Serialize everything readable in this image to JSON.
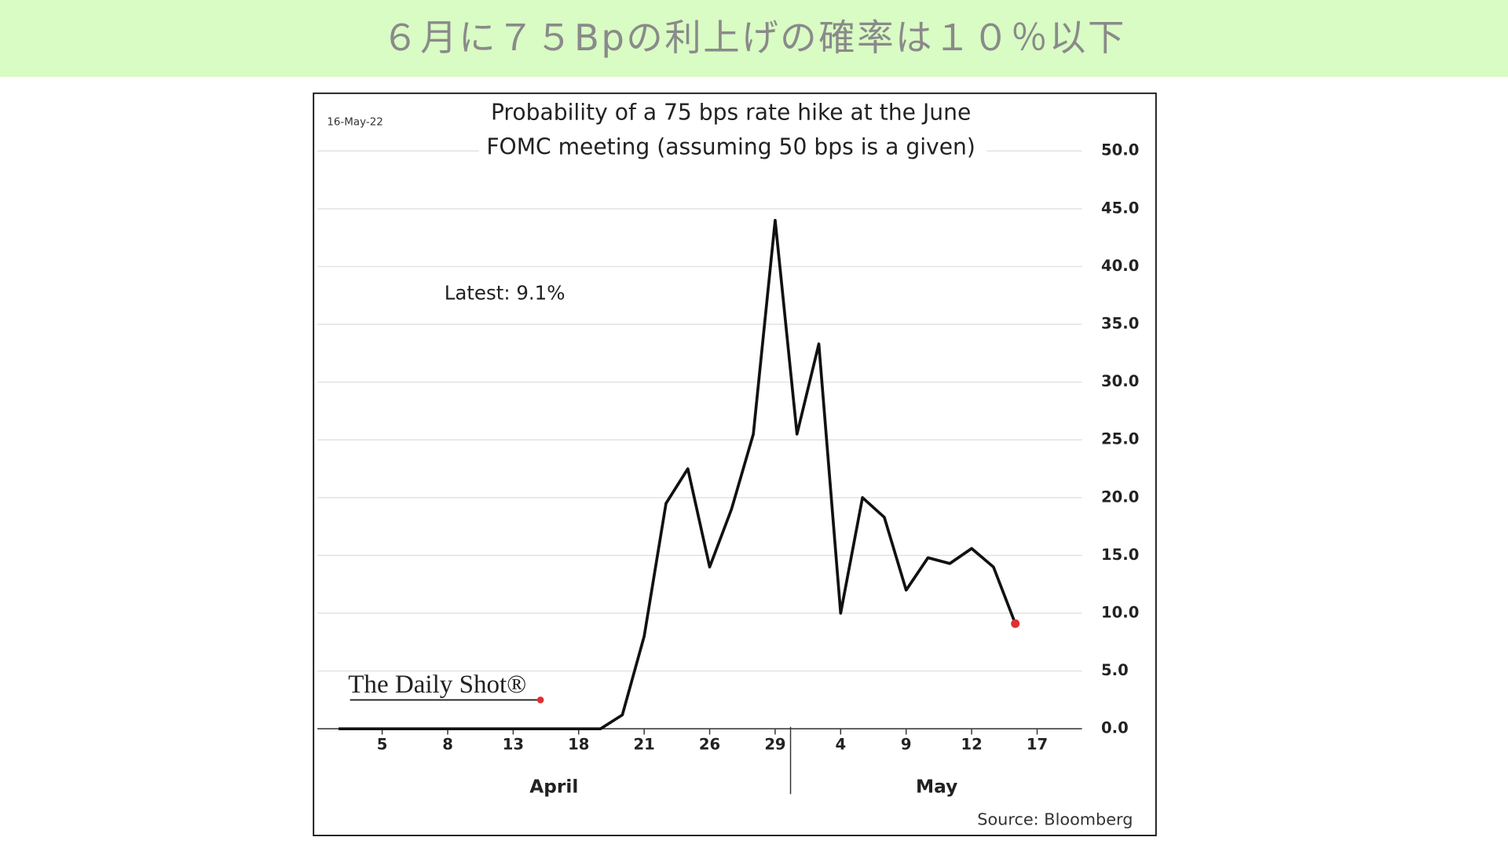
{
  "header": "６月に７５Bpの利上げの確率は１０％以下",
  "chart_data": {
    "type": "line",
    "title": [
      "Probability of a 75 bps rate hike at the June",
      "FOMC meeting (assuming 50 bps is a given)"
    ],
    "date": "16-May-22",
    "annotation": "Latest:  9.1%",
    "brand": "The Daily Shot®",
    "source": "Source: Bloomberg",
    "month_labels": [
      "April",
      "May"
    ],
    "categories": [
      null,
      null,
      "5",
      null,
      null,
      "8",
      null,
      null,
      "13",
      null,
      null,
      "18",
      null,
      null,
      "21",
      null,
      null,
      "26",
      null,
      null,
      "29",
      null,
      null,
      "4",
      null,
      null,
      "9",
      null,
      null,
      "12",
      null,
      null,
      "17"
    ],
    "series": [
      {
        "color": "#111111",
        "marker_color": "#e03030",
        "values": [
          0,
          0,
          0,
          0,
          0,
          0,
          0,
          0,
          0,
          0,
          0,
          0,
          0,
          1.2,
          8,
          19.5,
          22.5,
          14,
          19,
          25.5,
          44,
          25.5,
          33.3,
          10,
          20,
          18.3,
          12,
          14.8,
          14.3,
          15.6,
          14,
          9.1,
          null
        ]
      }
    ],
    "ylim": [
      0,
      50
    ],
    "yticks": [
      {
        "value": 0,
        "label": "0.0"
      },
      {
        "value": 5,
        "label": "5.0"
      },
      {
        "value": 10,
        "label": "10.0"
      },
      {
        "value": 15,
        "label": "15.0"
      },
      {
        "value": 20,
        "label": "20.0"
      },
      {
        "value": 25,
        "label": "25.0"
      },
      {
        "value": 30,
        "label": "30.0"
      },
      {
        "value": 35,
        "label": "35.0"
      },
      {
        "value": 40,
        "label": "40.0"
      },
      {
        "value": 45,
        "label": "45.0"
      },
      {
        "value": 50,
        "label": "50.0"
      }
    ],
    "grid": true
  }
}
